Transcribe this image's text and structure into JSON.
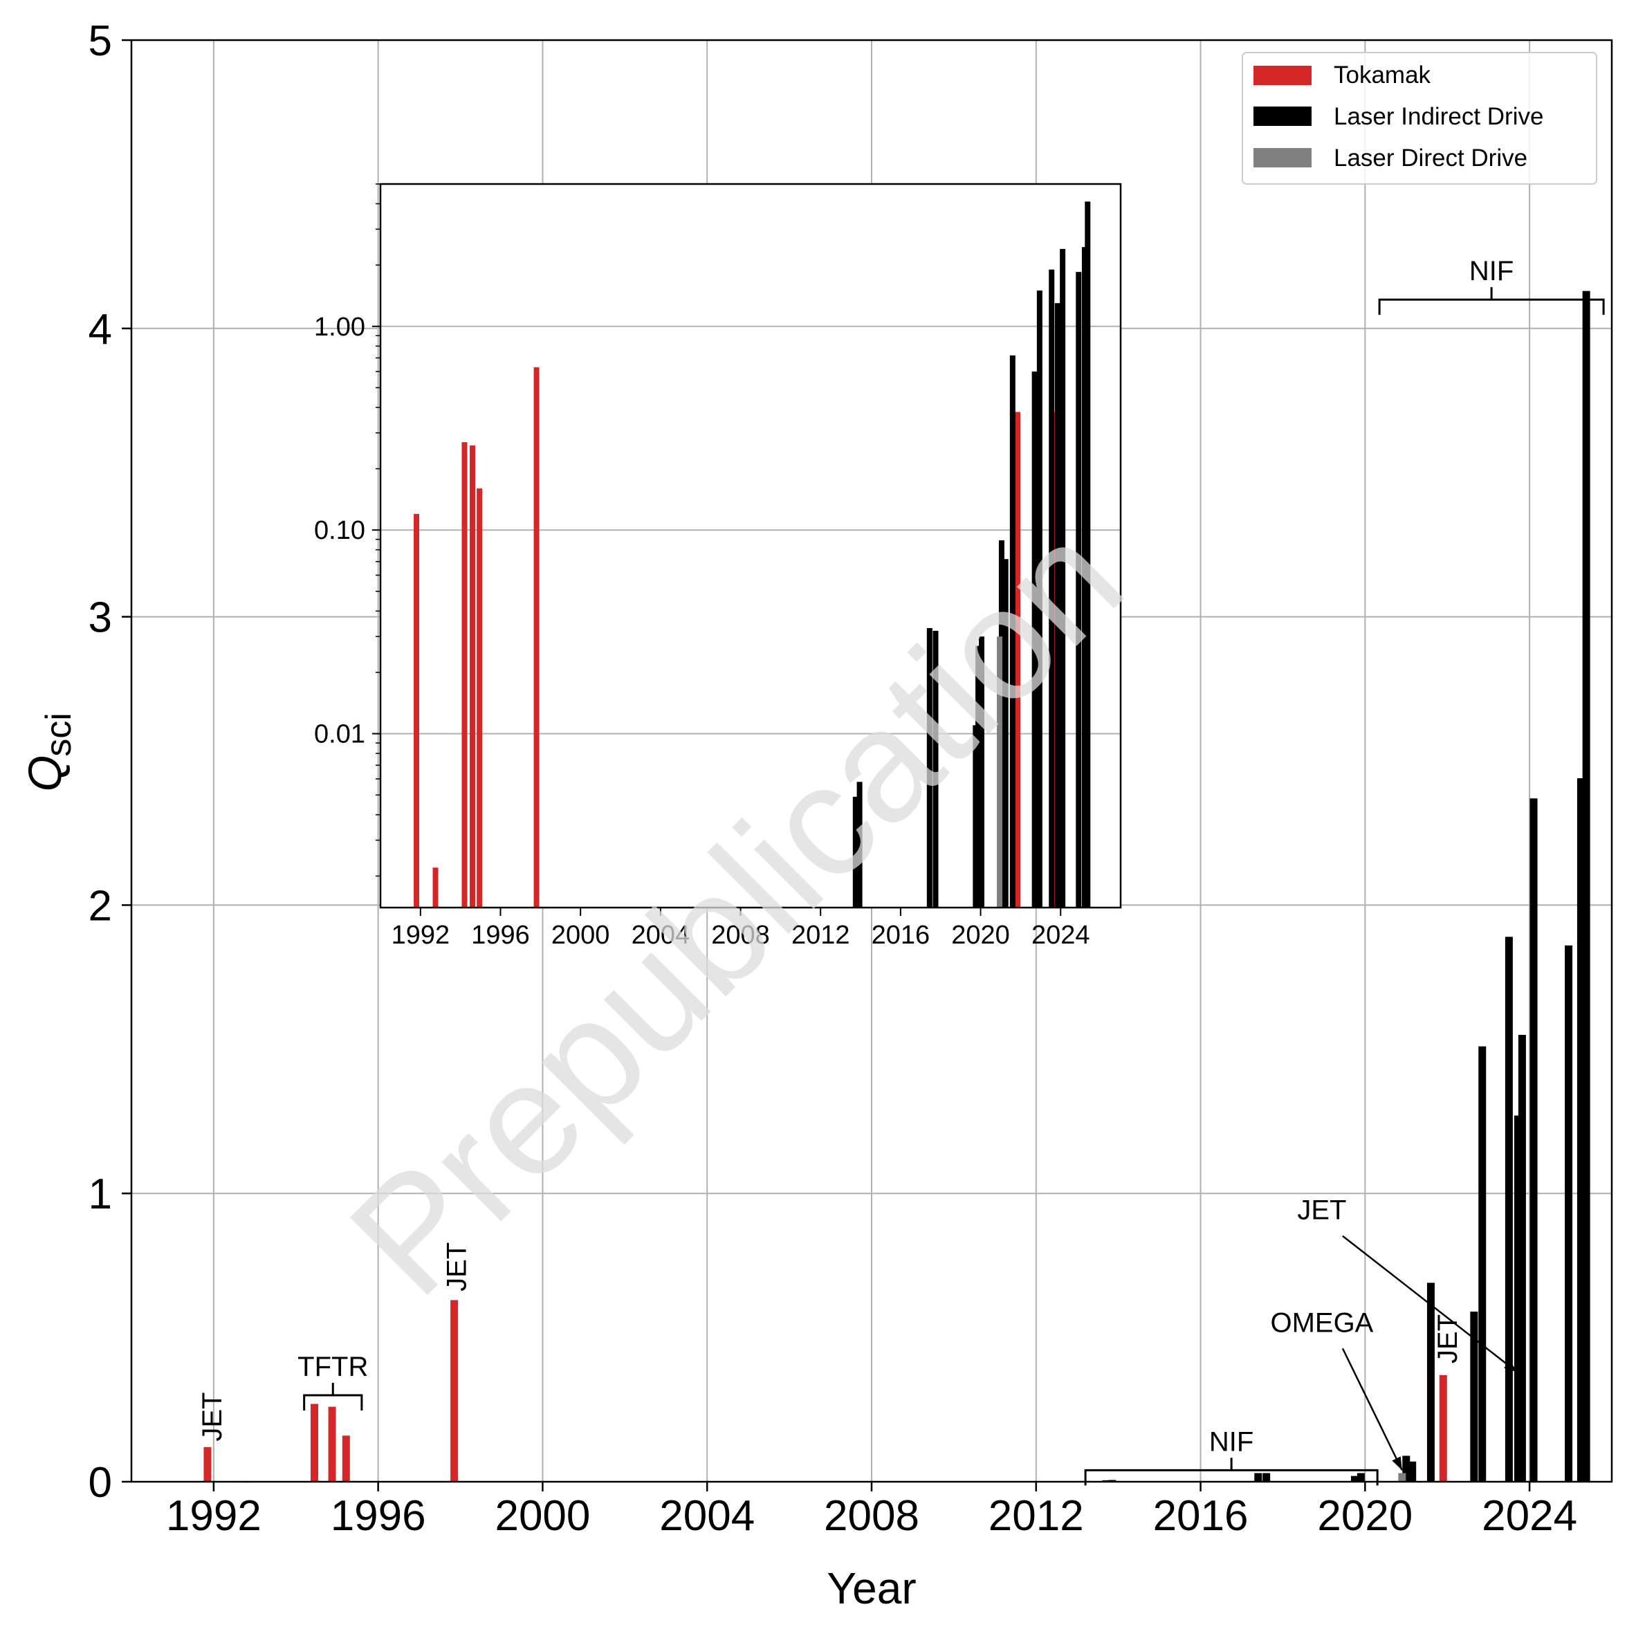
{
  "watermark": "Prepublication",
  "colors": {
    "tokamak": "#d62728",
    "indirect": "#000000",
    "direct": "#808080",
    "grid": "#b0b0b0",
    "watermark": "#d9d9d9"
  },
  "chart_data": [
    {
      "id": "main",
      "type": "bar",
      "xlabel": "Year",
      "ylabel": "Q",
      "ylabel_sub": "sci",
      "xlim": [
        1990,
        2026
      ],
      "ylim": [
        0,
        5
      ],
      "xticks": [
        1992,
        1996,
        2000,
        2004,
        2008,
        2012,
        2016,
        2020,
        2024
      ],
      "yticks": [
        0,
        1,
        2,
        3,
        4,
        5
      ],
      "grid": true,
      "legend": {
        "position": "top-right",
        "entries": [
          {
            "label": "Tokamak",
            "series": "tokamak"
          },
          {
            "label": "Laser Indirect Drive",
            "series": "indirect"
          },
          {
            "label": "Laser Direct Drive",
            "series": "direct"
          }
        ]
      },
      "series": [
        {
          "name": "Tokamak",
          "key": "tokamak",
          "points": [
            {
              "x": 1991.85,
              "y": 0.12
            },
            {
              "x": 1992.8,
              "y": 0.002
            },
            {
              "x": 1994.45,
              "y": 0.27
            },
            {
              "x": 1994.88,
              "y": 0.26
            },
            {
              "x": 1995.22,
              "y": 0.16
            },
            {
              "x": 1997.85,
              "y": 0.63
            },
            {
              "x": 2021.9,
              "y": 0.37
            },
            {
              "x": 2023.75,
              "y": 0.37
            }
          ]
        },
        {
          "name": "Laser Indirect Drive",
          "key": "indirect",
          "points": [
            {
              "x": 2013.7,
              "y": 0.005
            },
            {
              "x": 2013.85,
              "y": 0.006
            },
            {
              "x": 2017.4,
              "y": 0.03
            },
            {
              "x": 2017.6,
              "y": 0.03
            },
            {
              "x": 2019.75,
              "y": 0.02
            },
            {
              "x": 2019.9,
              "y": 0.03
            },
            {
              "x": 2021.0,
              "y": 0.09
            },
            {
              "x": 2021.15,
              "y": 0.07
            },
            {
              "x": 2021.6,
              "y": 0.69
            },
            {
              "x": 2022.65,
              "y": 0.59
            },
            {
              "x": 2022.85,
              "y": 1.51
            },
            {
              "x": 2023.5,
              "y": 1.89
            },
            {
              "x": 2023.72,
              "y": 1.27
            },
            {
              "x": 2023.82,
              "y": 1.55
            },
            {
              "x": 2024.1,
              "y": 2.37
            },
            {
              "x": 2024.95,
              "y": 1.86
            },
            {
              "x": 2025.25,
              "y": 2.44
            },
            {
              "x": 2025.38,
              "y": 4.13
            }
          ]
        },
        {
          "name": "Laser Direct Drive",
          "key": "direct",
          "points": [
            {
              "x": 2020.9,
              "y": 0.03
            }
          ]
        }
      ],
      "annotations": [
        {
          "text": "JET",
          "x": 1991.95,
          "y": 0.14,
          "style": "vertical"
        },
        {
          "text": "JET",
          "x": 1997.9,
          "y": 0.66,
          "style": "vertical"
        },
        {
          "text": "JET",
          "x": 2022.0,
          "y": 0.41,
          "style": "vertical"
        },
        {
          "text": "TFTR",
          "x1": 1994.2,
          "x2": 1995.6,
          "y": 0.3,
          "style": "bracket"
        },
        {
          "text": "NIF",
          "x1": 2013.2,
          "x2": 2020.3,
          "y": 0.04,
          "style": "bracket"
        },
        {
          "text": "NIF",
          "x1": 2020.35,
          "x2": 2025.8,
          "y": 4.1,
          "style": "bracket"
        },
        {
          "text": "OMEGA",
          "tx": 2018.95,
          "ty": 0.52,
          "ax": 2020.9,
          "ay": 0.04,
          "style": "arrow"
        },
        {
          "text": "JET",
          "tx": 2018.95,
          "ty": 0.91,
          "ax": 2023.7,
          "ay": 0.38,
          "style": "arrow"
        }
      ]
    },
    {
      "id": "inset",
      "type": "bar",
      "scale": "log",
      "xlim": [
        1990,
        2027
      ],
      "ylim": [
        0.0014,
        5
      ],
      "xticks": [
        1992,
        1996,
        2000,
        2004,
        2008,
        2012,
        2016,
        2020,
        2024
      ],
      "yticks": [
        0.01,
        0.1,
        1.0
      ],
      "ytick_labels": [
        "0.01",
        "0.10",
        "1.00"
      ],
      "grid": true,
      "series": [
        {
          "name": "Tokamak",
          "key": "tokamak",
          "points": [
            {
              "x": 1991.8,
              "y": 0.12
            },
            {
              "x": 1992.75,
              "y": 0.0022
            },
            {
              "x": 1994.2,
              "y": 0.27
            },
            {
              "x": 1994.6,
              "y": 0.26
            },
            {
              "x": 1994.95,
              "y": 0.16
            },
            {
              "x": 1997.8,
              "y": 0.63
            },
            {
              "x": 2021.85,
              "y": 0.38
            },
            {
              "x": 2023.8,
              "y": 0.38
            }
          ]
        },
        {
          "name": "Laser Indirect Drive",
          "key": "indirect",
          "points": [
            {
              "x": 2013.75,
              "y": 0.0049
            },
            {
              "x": 2013.95,
              "y": 0.0058
            },
            {
              "x": 2017.45,
              "y": 0.033
            },
            {
              "x": 2017.75,
              "y": 0.032
            },
            {
              "x": 2019.75,
              "y": 0.011
            },
            {
              "x": 2019.88,
              "y": 0.027
            },
            {
              "x": 2020.05,
              "y": 0.03
            },
            {
              "x": 2021.05,
              "y": 0.089
            },
            {
              "x": 2021.25,
              "y": 0.072
            },
            {
              "x": 2021.6,
              "y": 0.72
            },
            {
              "x": 2022.7,
              "y": 0.6
            },
            {
              "x": 2022.95,
              "y": 1.5
            },
            {
              "x": 2023.55,
              "y": 1.9
            },
            {
              "x": 2023.85,
              "y": 1.3
            },
            {
              "x": 2024.1,
              "y": 2.4
            },
            {
              "x": 2024.9,
              "y": 1.85
            },
            {
              "x": 2025.2,
              "y": 2.45
            },
            {
              "x": 2025.35,
              "y": 4.1
            }
          ]
        },
        {
          "name": "Laser Direct Drive",
          "key": "direct",
          "points": [
            {
              "x": 2020.95,
              "y": 0.03
            }
          ]
        }
      ]
    }
  ]
}
